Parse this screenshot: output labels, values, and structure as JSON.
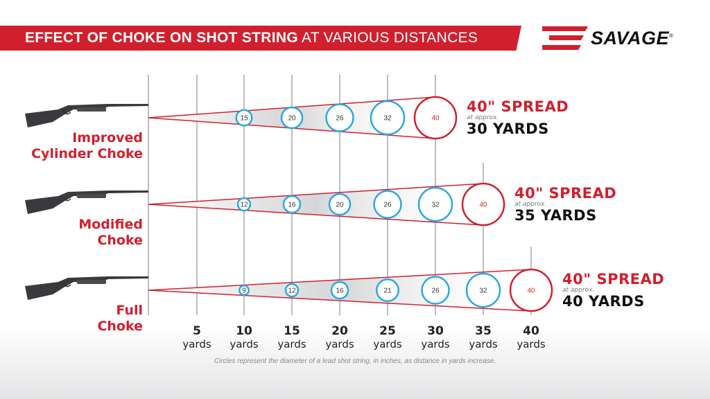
{
  "header": {
    "title_bold": "EFFECT OF CHOKE ON SHOT STRING",
    "title_light": "AT VARIOUS DISTANCES"
  },
  "logo": {
    "text": "SAVAGE",
    "mark": "®"
  },
  "colors": {
    "red": "#d0202e",
    "blue": "#29a9e1",
    "grid": "#a9a9a9"
  },
  "distances": [
    {
      "n": "5",
      "u": "yards"
    },
    {
      "n": "10",
      "u": "yards"
    },
    {
      "n": "15",
      "u": "yards"
    },
    {
      "n": "20",
      "u": "yards"
    },
    {
      "n": "25",
      "u": "yards"
    },
    {
      "n": "30",
      "u": "yards"
    },
    {
      "n": "35",
      "u": "yards"
    },
    {
      "n": "40",
      "u": "yards"
    }
  ],
  "rows": [
    {
      "line1": "Improved",
      "line2": "Cylinder Choke",
      "circles": [
        15,
        20,
        26,
        32,
        40
      ],
      "spread": "40\" SPREAD",
      "approx": "at approx.",
      "yards": "30 YARDS"
    },
    {
      "line1": "Modified",
      "line2": "Choke",
      "circles": [
        12,
        16,
        20,
        26,
        32,
        40
      ],
      "spread": "40\" SPREAD",
      "approx": "at approx.",
      "yards": "35 YARDS"
    },
    {
      "line1": "Full",
      "line2": "Choke",
      "circles": [
        9,
        12,
        16,
        21,
        26,
        32,
        40
      ],
      "spread": "40\" SPREAD",
      "approx": "at approx.",
      "yards": "40 YARDS"
    }
  ],
  "footnote": "Circles represent the diameter of a lead shot string, in inches, as distance in yards increase."
}
